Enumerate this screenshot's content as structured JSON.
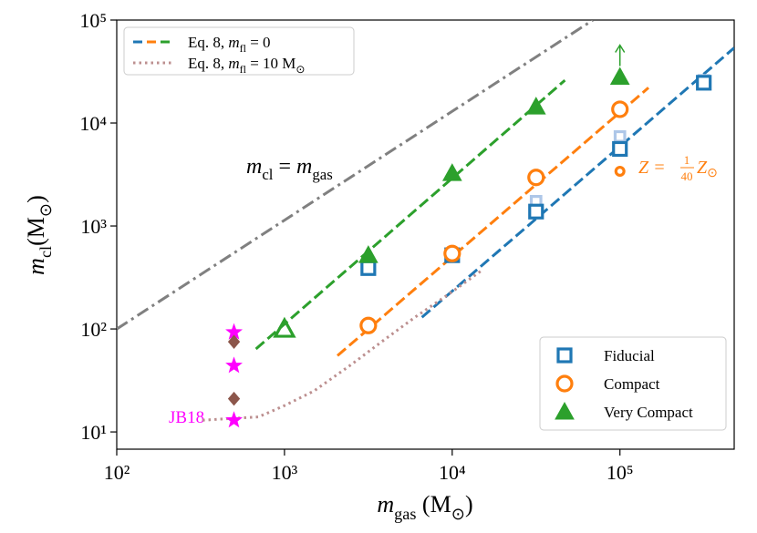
{
  "chart_data": {
    "type": "scatter",
    "log_x": true,
    "log_y": true,
    "xlim": [
      100,
      480000
    ],
    "ylim": [
      6.8,
      100000
    ],
    "xticks": [
      {
        "value": 100,
        "label": "10²"
      },
      {
        "value": 1000,
        "label": "10³"
      },
      {
        "value": 10000,
        "label": "10⁴"
      },
      {
        "value": 100000,
        "label": "10⁵"
      }
    ],
    "yticks": [
      {
        "value": 10,
        "label": "10¹"
      },
      {
        "value": 100,
        "label": "10²"
      },
      {
        "value": 1000,
        "label": "10³"
      },
      {
        "value": 10000,
        "label": "10⁴"
      },
      {
        "value": 100000,
        "label": "10⁵"
      }
    ],
    "x_label": [
      {
        "text": "m",
        "style": "i"
      },
      {
        "text": "gas",
        "style": "sub"
      },
      {
        "text": " (M",
        "style": "n"
      },
      {
        "text": "⊙",
        "style": "sub"
      },
      {
        "text": ")",
        "style": "n"
      }
    ],
    "y_label": [
      {
        "text": "m",
        "style": "i"
      },
      {
        "text": "cl",
        "style": "sub"
      },
      {
        "text": "(M",
        "style": "n"
      },
      {
        "text": "⊙",
        "style": "sub"
      },
      {
        "text": ")",
        "style": "n"
      }
    ],
    "series": [
      {
        "name": "Fiducial",
        "color": "#1f77b4",
        "marker": "square",
        "filled": false,
        "x": [
          3162,
          10000,
          31623,
          100000,
          316228
        ],
        "values": [
          390,
          520,
          1380,
          5600,
          24600
        ]
      },
      {
        "name": "Compact",
        "color": "#ff7f0e",
        "marker": "circle",
        "filled": false,
        "x": [
          3162,
          10000,
          31623,
          100000
        ],
        "values": [
          108,
          540,
          2960,
          13600
        ]
      },
      {
        "name": "Very Compact",
        "color": "#2ca02c",
        "marker": "triangle",
        "filled": true,
        "x": [
          3162,
          10000,
          31623
        ],
        "values": [
          520,
          3250,
          14400
        ]
      }
    ],
    "extra_points": [
      {
        "color": "#aec7e8",
        "marker": "square",
        "filled": false,
        "size": 0.75,
        "x": [
          31623,
          100000,
          316228
        ],
        "values": [
          1740,
          7400,
          26000
        ]
      },
      {
        "color": "#ff7f0e",
        "marker": "circle",
        "filled": false,
        "size": 0.55,
        "x": [
          100000
        ],
        "values": [
          3400
        ]
      },
      {
        "color": "#2ca02c",
        "marker": "triangle",
        "filled": false,
        "size": 1,
        "x": [
          1000
        ],
        "values": [
          100
        ]
      },
      {
        "color": "#2ca02c",
        "marker": "triangle",
        "filled": true,
        "size": 1,
        "arrow": true,
        "x": [
          100000
        ],
        "values": [
          28000
        ]
      },
      {
        "color": "#ff00ff",
        "marker": "star",
        "filled": true,
        "size": 1,
        "x": [
          500,
          500,
          500
        ],
        "values": [
          93,
          44,
          13
        ]
      },
      {
        "color": "#8c564b",
        "marker": "diamond",
        "filled": true,
        "size": 1,
        "x": [
          500,
          500
        ],
        "values": [
          75,
          21
        ]
      }
    ],
    "lines": [
      {
        "color": "#1f77b4",
        "dash": "dashed",
        "x": [
          6600,
          480000
        ],
        "values": [
          130,
          53700
        ]
      },
      {
        "color": "#ff7f0e",
        "dash": "dashed",
        "x": [
          2070,
          148000
        ],
        "values": [
          55,
          22000
        ]
      },
      {
        "color": "#2ca02c",
        "dash": "dashed",
        "x": [
          676,
          47000
        ],
        "values": [
          64,
          26000
        ]
      },
      {
        "color": "#bc8f8f",
        "dash": "dotted",
        "x": [
          325,
          700,
          1000,
          1500,
          2500,
          4000,
          6000,
          10000,
          15000
        ],
        "values": [
          13,
          14,
          18,
          25,
          45,
          80,
          130,
          230,
          370
        ]
      },
      {
        "color": "#808080",
        "dash": "dashdot",
        "x": [
          100,
          69000
        ],
        "values": [
          100,
          100000
        ]
      }
    ],
    "line_legend": [
      [
        {
          "text": "Eq. 8, ",
          "style": "n"
        },
        {
          "text": "m",
          "style": "i"
        },
        {
          "text": "fl",
          "style": "sub"
        },
        {
          "text": " = 0",
          "style": "n"
        }
      ],
      [
        {
          "text": "Eq. 8, ",
          "style": "n"
        },
        {
          "text": "m",
          "style": "i"
        },
        {
          "text": "fl",
          "style": "sub"
        },
        {
          "text": " = 10 M",
          "style": "n"
        },
        {
          "text": "⊙",
          "style": "sub"
        }
      ]
    ],
    "annotations": {
      "identity": [
        {
          "text": "m",
          "style": "i"
        },
        {
          "text": "cl",
          "style": "sub"
        },
        {
          "text": " = ",
          "style": "n"
        },
        {
          "text": "m",
          "style": "i"
        },
        {
          "text": "gas",
          "style": "sub"
        }
      ],
      "metallicity": {
        "lhs": "Z = ",
        "num": "1",
        "den": "40",
        "z": "Z",
        "sun": "⊙"
      },
      "jb18": "JB18"
    }
  }
}
